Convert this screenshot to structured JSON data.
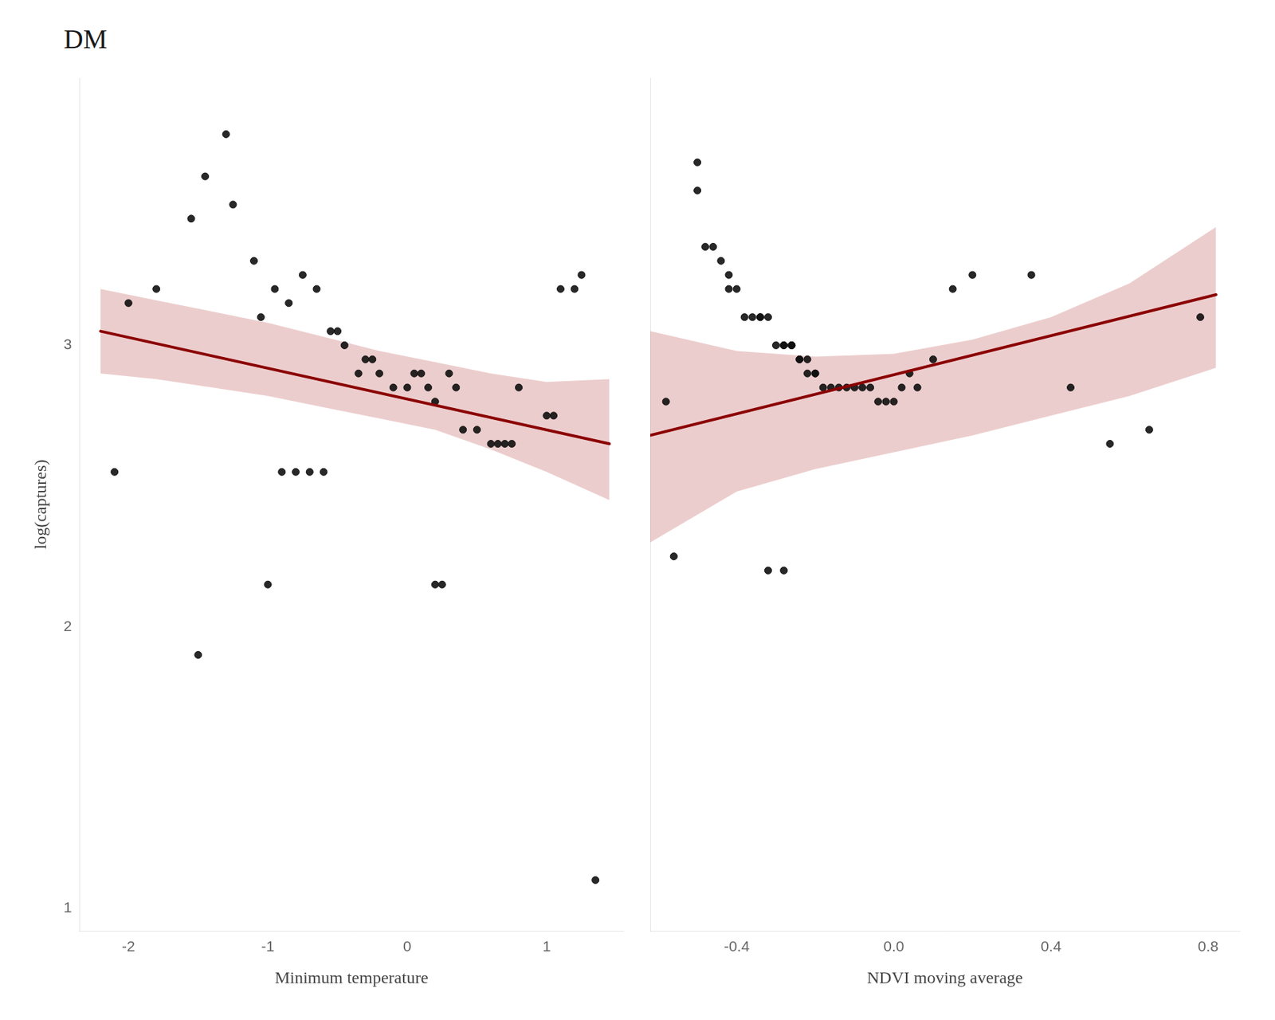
{
  "chart_data": [
    {
      "type": "scatter",
      "title": "DM",
      "xlabel": "Minimum temperature",
      "ylabel": "log(captures)",
      "xlim": [
        -2.35,
        1.55
      ],
      "ylim": [
        0.92,
        3.95
      ],
      "xticks": [
        -2,
        -1,
        0,
        1
      ],
      "yticks": [
        1,
        2,
        3
      ],
      "grid": false,
      "series": [
        {
          "type": "scatter",
          "color": "#111111",
          "x": [
            -2.1,
            -2.0,
            -1.8,
            -1.55,
            -1.45,
            -1.3,
            -1.25,
            -1.1,
            -1.05,
            -0.95,
            -0.85,
            -0.75,
            -0.65,
            -0.55,
            -0.5,
            -0.45,
            -0.35,
            -0.3,
            -0.25,
            -0.2,
            -0.1,
            0.0,
            0.05,
            0.1,
            0.15,
            0.2,
            0.3,
            0.35,
            0.4,
            0.5,
            0.6,
            0.65,
            0.7,
            0.75,
            0.8,
            1.0,
            1.05,
            1.1,
            1.2,
            1.25,
            1.35,
            -1.5,
            -1.0,
            -0.9,
            -0.8,
            -0.7,
            -0.6,
            0.2,
            0.25
          ],
          "values": [
            2.55,
            3.15,
            3.2,
            3.45,
            3.6,
            3.75,
            3.5,
            3.3,
            3.1,
            3.2,
            3.15,
            3.25,
            3.2,
            3.05,
            3.05,
            3.0,
            2.9,
            2.95,
            2.95,
            2.9,
            2.85,
            2.85,
            2.9,
            2.9,
            2.85,
            2.8,
            2.9,
            2.85,
            2.7,
            2.7,
            2.65,
            2.65,
            2.65,
            2.65,
            2.85,
            2.75,
            2.75,
            3.2,
            3.2,
            3.25,
            1.1,
            1.9,
            2.15,
            2.55,
            2.55,
            2.55,
            2.55,
            2.15,
            2.15
          ]
        },
        {
          "type": "line",
          "color": "#8B0000",
          "x": [
            -2.2,
            1.45
          ],
          "values": [
            3.05,
            2.65
          ]
        },
        {
          "type": "band",
          "color": "#C87070",
          "x": [
            -2.2,
            -1.8,
            -1.4,
            -1.0,
            -0.6,
            -0.2,
            0.2,
            0.6,
            1.0,
            1.45
          ],
          "upper": [
            3.2,
            3.16,
            3.12,
            3.08,
            3.03,
            2.98,
            2.94,
            2.9,
            2.87,
            2.88
          ],
          "lower": [
            2.9,
            2.88,
            2.85,
            2.82,
            2.78,
            2.74,
            2.7,
            2.63,
            2.55,
            2.45
          ]
        }
      ]
    },
    {
      "type": "scatter",
      "xlabel": "NDVI moving average",
      "xlim": [
        -0.62,
        0.88
      ],
      "ylim": [
        0.92,
        3.95
      ],
      "xticks": [
        -0.4,
        {
          "value": 0.0,
          "label": "0.0"
        },
        0.4,
        0.8
      ],
      "yticks": [
        1,
        2,
        3
      ],
      "grid": false,
      "tick_labels": "x",
      "series": [
        {
          "type": "scatter",
          "color": "#111111",
          "x": [
            -0.58,
            -0.5,
            -0.5,
            -0.48,
            -0.46,
            -0.44,
            -0.42,
            -0.42,
            -0.4,
            -0.38,
            -0.36,
            -0.34,
            -0.34,
            -0.32,
            -0.3,
            -0.28,
            -0.28,
            -0.26,
            -0.26,
            -0.26,
            -0.24,
            -0.24,
            -0.22,
            -0.22,
            -0.2,
            -0.2,
            -0.18,
            -0.16,
            -0.14,
            -0.12,
            -0.1,
            -0.08,
            -0.06,
            -0.04,
            -0.02,
            0.0,
            0.02,
            0.04,
            0.06,
            0.1,
            0.15,
            0.2,
            0.35,
            0.45,
            0.55,
            0.65,
            0.78,
            -0.56,
            -0.32,
            -0.28
          ],
          "values": [
            2.8,
            3.55,
            3.65,
            3.35,
            3.35,
            3.3,
            3.25,
            3.2,
            3.2,
            3.1,
            3.1,
            3.1,
            3.1,
            3.1,
            3.0,
            3.0,
            3.0,
            3.0,
            3.0,
            3.0,
            2.95,
            2.95,
            2.95,
            2.9,
            2.9,
            2.9,
            2.85,
            2.85,
            2.85,
            2.85,
            2.85,
            2.85,
            2.85,
            2.8,
            2.8,
            2.8,
            2.85,
            2.9,
            2.85,
            2.95,
            3.2,
            3.25,
            3.25,
            2.85,
            2.65,
            2.7,
            3.1,
            2.25,
            2.2,
            2.2
          ]
        },
        {
          "type": "line",
          "color": "#8B0000",
          "x": [
            -0.62,
            0.82
          ],
          "values": [
            2.68,
            3.18
          ]
        },
        {
          "type": "band",
          "color": "#C87070",
          "x": [
            -0.62,
            -0.4,
            -0.2,
            0.0,
            0.2,
            0.4,
            0.6,
            0.82
          ],
          "upper": [
            3.05,
            2.98,
            2.96,
            2.97,
            3.02,
            3.1,
            3.22,
            3.42
          ],
          "lower": [
            2.3,
            2.48,
            2.56,
            2.62,
            2.68,
            2.75,
            2.82,
            2.92
          ]
        }
      ]
    }
  ]
}
